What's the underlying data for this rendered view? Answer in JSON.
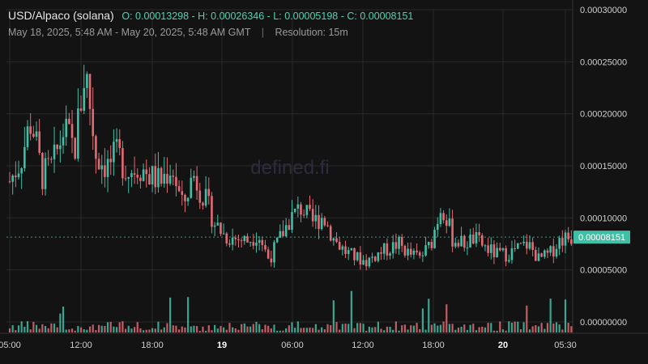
{
  "header": {
    "pair": "USD/Alpaco (solana)",
    "ohlc": "O: 0.00013298 - H: 0.00026346 - L: 0.00005198 - C: 0.00008151",
    "range": "May 18, 2025, 5:48 AM - May 20, 2025, 5:48 AM GMT",
    "separator": "|",
    "resolution": "Resolution: 15m"
  },
  "watermark": "defined.fi",
  "colors": {
    "up": "#3fbfa6",
    "down": "#e26b74",
    "grid": "#2a2a2a",
    "axis_text": "#cfcfcf",
    "last_price_bg": "#3fbfa6"
  },
  "chart_data": {
    "type": "candlestick",
    "interval": "15m",
    "y_ticks": [
      "0.00030000",
      "0.00025000",
      "0.00020000",
      "0.00015000",
      "0.00010000",
      "0.00005000",
      "0.00000000"
    ],
    "ylim": [
      0,
      0.0003
    ],
    "x_ticks": [
      "05:00",
      "12:00",
      "18:00",
      "19",
      "06:00",
      "12:00",
      "18:00",
      "20",
      "05:30"
    ],
    "x_ticks_bold": [
      "19",
      "20"
    ],
    "last_price": "0.00008151",
    "price_path": [
      [
        0,
        0.000135
      ],
      [
        1,
        0.000155
      ],
      [
        2,
        0.000195
      ],
      [
        3,
        0.00014
      ],
      [
        4,
        0.00015
      ],
      [
        5,
        0.000185
      ],
      [
        6,
        0.000165
      ],
      [
        7,
        0.000245
      ],
      [
        8,
        0.00016
      ],
      [
        9,
        0.00015
      ],
      [
        10,
        0.00016
      ],
      [
        11,
        0.000145
      ],
      [
        12,
        0.00015
      ],
      [
        13,
        0.00014
      ],
      [
        14,
        0.000135
      ],
      [
        15,
        0.00015
      ],
      [
        16,
        0.00011
      ],
      [
        17,
        0.000142
      ],
      [
        18,
        0.00012
      ],
      [
        19,
        9.5e-05
      ],
      [
        20,
        8.2e-05
      ],
      [
        21,
        8e-05
      ],
      [
        22,
        7.8e-05
      ],
      [
        23,
        8.5e-05
      ],
      [
        24,
        6e-05
      ],
      [
        25,
        8e-05
      ],
      [
        26,
        0.0001
      ],
      [
        27,
        0.00011
      ],
      [
        28,
        9.5e-05
      ],
      [
        29,
        0.000102
      ],
      [
        30,
        8e-05
      ],
      [
        31,
        6.8e-05
      ],
      [
        32,
        6.2e-05
      ],
      [
        33,
        5.8e-05
      ],
      [
        34,
        6.5e-05
      ],
      [
        35,
        7e-05
      ],
      [
        36,
        7.5e-05
      ],
      [
        37,
        6.5e-05
      ],
      [
        38,
        6.2e-05
      ],
      [
        39,
        7.5e-05
      ],
      [
        40,
        0.000115
      ],
      [
        41,
        8e-05
      ],
      [
        42,
        7.5e-05
      ],
      [
        43,
        8e-05
      ],
      [
        44,
        7.2e-05
      ],
      [
        45,
        6.5e-05
      ],
      [
        46,
        6.5e-05
      ],
      [
        47,
        7e-05
      ],
      [
        48,
        7.5e-05
      ],
      [
        49,
        6e-05
      ],
      [
        50,
        6.5e-05
      ],
      [
        51,
        8e-05
      ],
      [
        52,
        8.15e-05
      ]
    ],
    "volume_ylim": [
      0,
      1
    ]
  }
}
